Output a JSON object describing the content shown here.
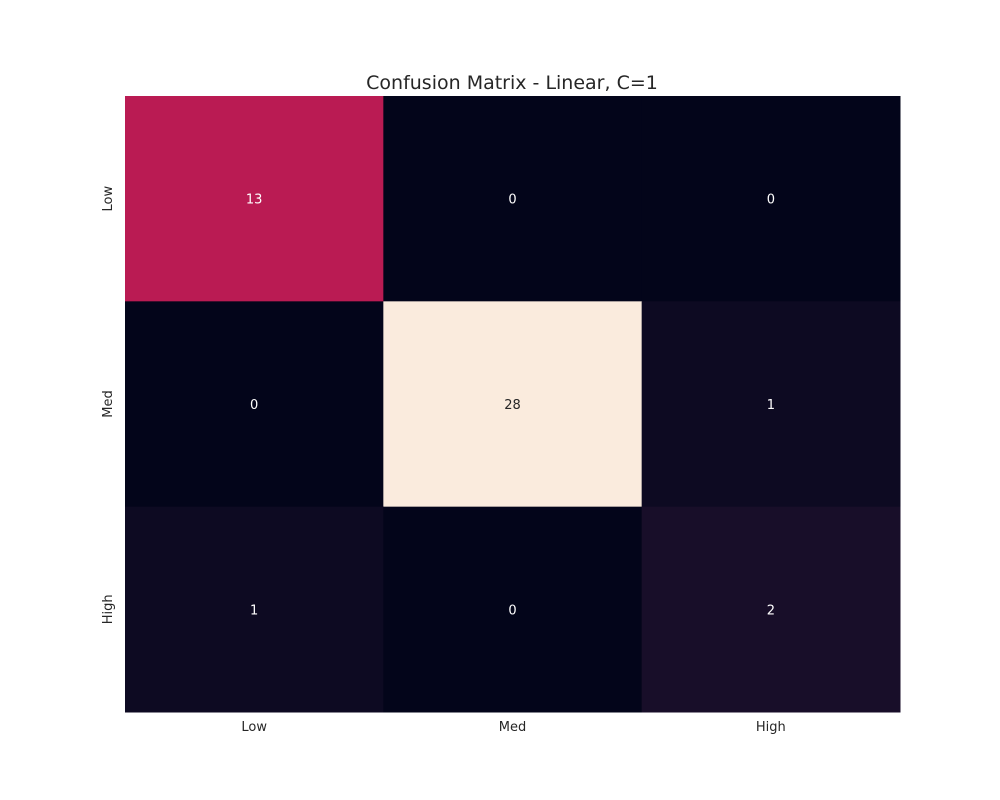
{
  "chart_data": {
    "type": "heatmap",
    "title": "Confusion Matrix - Linear, C=1",
    "x_categories": [
      "Low",
      "Med",
      "High"
    ],
    "y_categories": [
      "Low",
      "Med",
      "High"
    ],
    "values": [
      [
        13,
        0,
        0
      ],
      [
        0,
        28,
        1
      ],
      [
        1,
        0,
        2
      ]
    ],
    "colorbar": false,
    "colormap": "rocket",
    "annotated": true
  }
}
